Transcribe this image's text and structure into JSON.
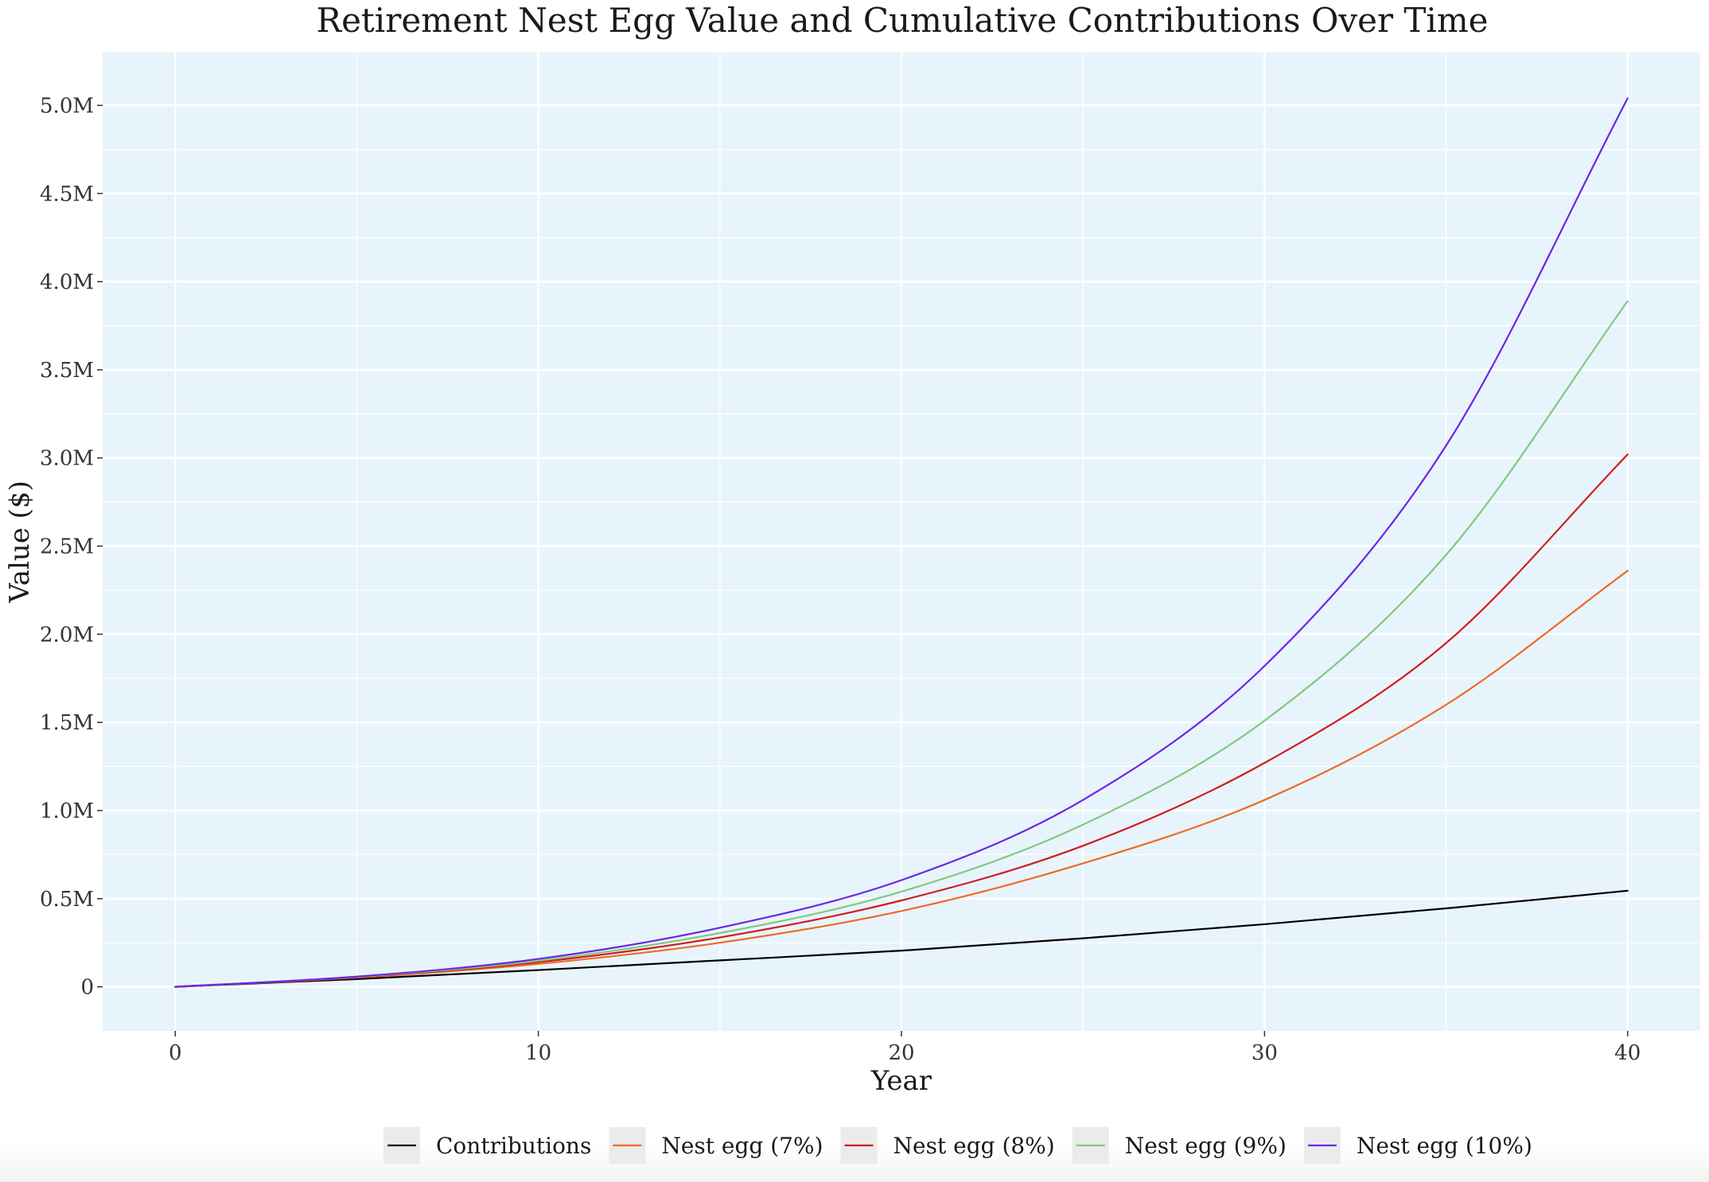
{
  "chart_data": {
    "type": "line",
    "title": "Retirement Nest Egg Value and Cumulative Contributions Over Time",
    "xlabel": "Year",
    "ylabel": "Value ($)",
    "xlim": [
      -2,
      42
    ],
    "ylim": [
      -250000,
      5300000
    ],
    "x_ticks": [
      0,
      10,
      20,
      30,
      40
    ],
    "x_tick_labels": [
      "0",
      "10",
      "20",
      "30",
      "40"
    ],
    "y_ticks": [
      0,
      500000,
      1000000,
      1500000,
      2000000,
      2500000,
      3000000,
      3500000,
      4000000,
      4500000,
      5000000
    ],
    "y_tick_labels": [
      "0",
      "0.5M",
      "1.0M",
      "1.5M",
      "2.0M",
      "2.5M",
      "3.0M",
      "3.5M",
      "4.0M",
      "4.5M",
      "5.0M"
    ],
    "grid": true,
    "background_color": "#e8f4fc",
    "legend_position": "bottom",
    "x": [
      0,
      5,
      10,
      15,
      20,
      25,
      30,
      35,
      40
    ],
    "series": [
      {
        "name": "Contributions",
        "color": "#000000",
        "values": [
          0,
          44000,
          95000,
          150000,
          205000,
          275000,
          355000,
          445000,
          545000
        ]
      },
      {
        "name": "Nest egg (7%)",
        "color": "#ee6a24",
        "values": [
          0,
          52000,
          130000,
          250000,
          430000,
          700000,
          1060000,
          1600000,
          2360000
        ]
      },
      {
        "name": "Nest egg (8%)",
        "color": "#d01c1c",
        "values": [
          0,
          54000,
          140000,
          280000,
          490000,
          800000,
          1270000,
          1950000,
          3020000
        ]
      },
      {
        "name": "Nest egg (9%)",
        "color": "#80c97d",
        "values": [
          0,
          56000,
          148000,
          305000,
          540000,
          920000,
          1510000,
          2450000,
          3890000
        ]
      },
      {
        "name": "Nest egg (10%)",
        "color": "#6a26e6",
        "values": [
          0,
          58000,
          158000,
          335000,
          605000,
          1060000,
          1820000,
          3070000,
          5040000
        ]
      }
    ]
  }
}
